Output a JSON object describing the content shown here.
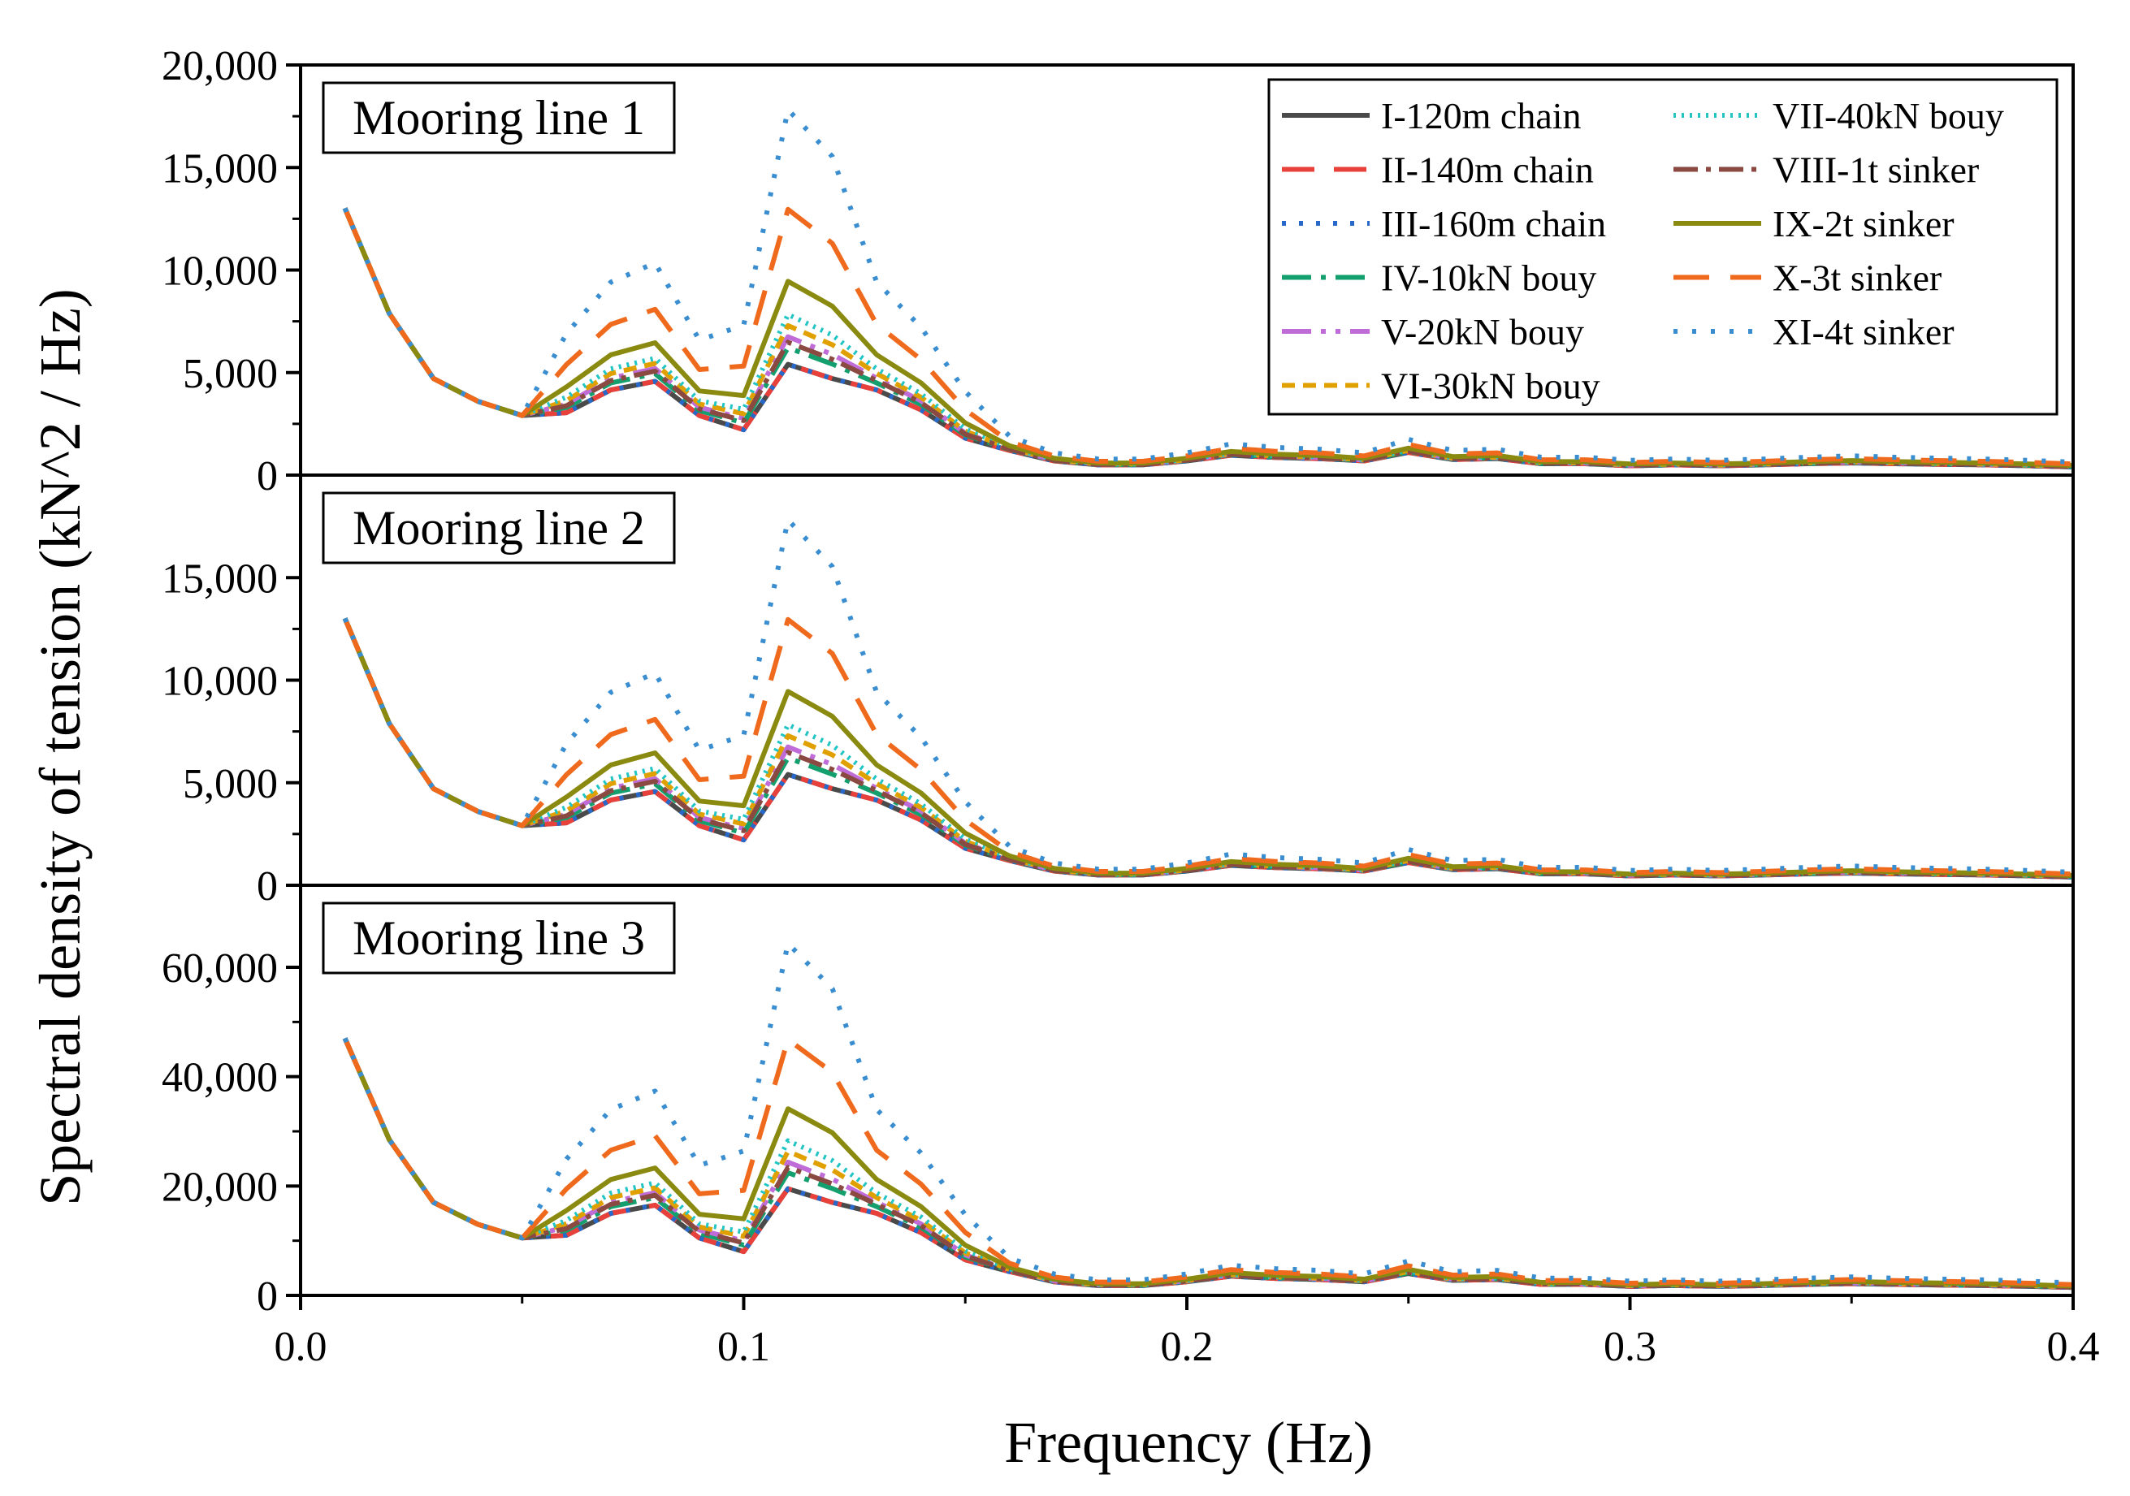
{
  "chart_data": {
    "type": "line",
    "xlabel": "Frequency (Hz)",
    "ylabel": "Spectral density of tension (kN^2 / Hz)",
    "xlim": [
      0.0,
      0.4
    ],
    "x_ticks": [
      "0.0",
      "0.1",
      "0.2",
      "0.3",
      "0.4"
    ],
    "x_tick_values": [
      0.0,
      0.1,
      0.2,
      0.3,
      0.4
    ],
    "x": [
      0.01,
      0.02,
      0.03,
      0.04,
      0.05,
      0.06,
      0.07,
      0.08,
      0.09,
      0.1,
      0.11,
      0.12,
      0.13,
      0.14,
      0.15,
      0.16,
      0.17,
      0.18,
      0.19,
      0.2,
      0.21,
      0.22,
      0.23,
      0.24,
      0.25,
      0.26,
      0.27,
      0.28,
      0.29,
      0.3,
      0.31,
      0.32,
      0.33,
      0.34,
      0.35,
      0.36,
      0.37,
      0.38,
      0.39,
      0.4
    ],
    "base_shape": [
      0.94,
      0.57,
      0.34,
      0.26,
      0.21,
      0.22,
      0.3,
      0.33,
      0.21,
      0.16,
      0.39,
      0.34,
      0.3,
      0.23,
      0.13,
      0.087,
      0.05,
      0.036,
      0.036,
      0.05,
      0.07,
      0.062,
      0.058,
      0.05,
      0.08,
      0.055,
      0.058,
      0.04,
      0.04,
      0.033,
      0.036,
      0.033,
      0.036,
      0.04,
      0.043,
      0.04,
      0.038,
      0.036,
      0.033,
      0.029
    ],
    "base_to_top_ratio": 0.85,
    "series": [
      {
        "name": "I-120m chain",
        "color": "#4a4a4a",
        "dash": "",
        "peak_factors": [
          1.0,
          1.0,
          1.0
        ]
      },
      {
        "name": "II-140m chain",
        "color": "#e8403a",
        "dash": "40,24",
        "peak_factors": [
          1.0,
          1.0,
          1.0
        ]
      },
      {
        "name": "III-160m chain",
        "color": "#2868c8",
        "dash": "5,16",
        "peak_factors": [
          1.0,
          1.0,
          1.0
        ]
      },
      {
        "name": "IV-10kN bouy",
        "color": "#14a06e",
        "dash": "36,12,6,12",
        "peak_factors": [
          1.15,
          1.15,
          1.15
        ]
      },
      {
        "name": "V-20kN bouy",
        "color": "#c06cd8",
        "dash": "36,12,6,12,6,12",
        "peak_factors": [
          1.25,
          1.25,
          1.25
        ]
      },
      {
        "name": "VI-30kN bouy",
        "color": "#e0a000",
        "dash": "16,10",
        "peak_factors": [
          1.35,
          1.35,
          1.35
        ]
      },
      {
        "name": "VII-40kN bouy",
        "color": "#22c4c4",
        "dash": "3,7",
        "peak_factors": [
          1.45,
          1.45,
          1.45
        ]
      },
      {
        "name": "VIII-1t sinker",
        "color": "#8a4a42",
        "dash": "30,10,6,10",
        "peak_factors": [
          1.2,
          1.2,
          1.2
        ]
      },
      {
        "name": "IX-2t sinker",
        "color": "#8a8a10",
        "dash": "",
        "peak_factors": [
          1.75,
          1.75,
          1.75
        ]
      },
      {
        "name": "X-3t sinker",
        "color": "#f06a1e",
        "dash": "44,26",
        "peak_factors": [
          2.4,
          2.4,
          2.4
        ]
      },
      {
        "name": "XI-4t sinker",
        "color": "#3a8ed0",
        "dash": "5,18",
        "peak_factors": [
          3.3,
          3.3,
          3.3
        ]
      }
    ],
    "panels": [
      {
        "label": "Mooring line 1",
        "ylim": [
          0,
          20000
        ],
        "y_ticks": [
          "0",
          "5,000",
          "10,000",
          "15,000",
          "20,000"
        ],
        "y_tick_values": [
          0,
          5000,
          10000,
          15000,
          20000
        ],
        "peak_value_I": 5400
      },
      {
        "label": "Mooring line 2",
        "ylim": [
          0,
          20000
        ],
        "y_ticks": [
          "0",
          "5,000",
          "10,000",
          "15,000"
        ],
        "y_tick_values": [
          0,
          5000,
          10000,
          15000
        ],
        "peak_value_I": 5400
      },
      {
        "label": "Mooring line 3",
        "ylim": [
          0,
          75000
        ],
        "y_ticks": [
          "0",
          "20,000",
          "40,000",
          "60,000"
        ],
        "y_tick_values": [
          0,
          20000,
          40000,
          60000
        ],
        "peak_value_I": 19500
      }
    ]
  }
}
